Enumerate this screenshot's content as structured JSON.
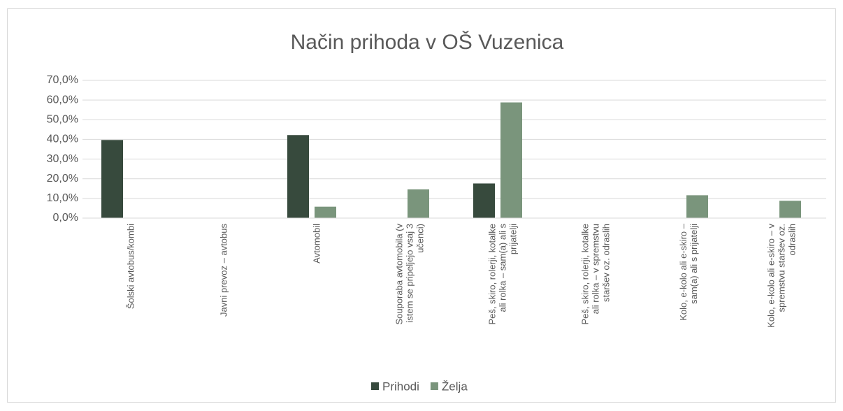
{
  "chart_data": {
    "type": "bar",
    "title": "Način prihoda v OŠ Vuzenica",
    "categories": [
      "Šolski avtobus/kombi",
      "Javni prevoz – avtobus",
      "Avtomobil",
      "Souporaba avtomobila (v istem se pripeljejo vsaj 3 učenci)",
      "Peš, skiro, rolerji, kotalke ali rolka – sam(a) ali s prijatelji",
      "Peš, skiro, rolerji, kotalke ali rolka – v spremstvu staršev oz. odraslih",
      "Kolo, e-kolo ali e-skiro – sam(a) ali s prijatelji",
      "Kolo, e-kolo ali e-skiro – v spremstvu staršev oz. odraslih"
    ],
    "series": [
      {
        "name": "Prihodi",
        "color": "#374a3d",
        "values": [
          39.7,
          0,
          42.2,
          0,
          17.6,
          0,
          0,
          0
        ]
      },
      {
        "name": "Želja",
        "color": "#7a957c",
        "values": [
          0,
          0,
          5.8,
          14.6,
          58.8,
          0,
          11.6,
          8.8
        ]
      }
    ],
    "ylim": [
      0,
      70
    ],
    "yticks": [
      {
        "value": 0,
        "label": "0,0%"
      },
      {
        "value": 10,
        "label": "10,0%"
      },
      {
        "value": 20,
        "label": "20,0%"
      },
      {
        "value": 30,
        "label": "30,0%"
      },
      {
        "value": 40,
        "label": "40,0%"
      },
      {
        "value": 50,
        "label": "50,0%"
      },
      {
        "value": 60,
        "label": "60,0%"
      },
      {
        "value": 70,
        "label": "70,0%"
      }
    ],
    "grid": true,
    "legend": "bottom"
  }
}
